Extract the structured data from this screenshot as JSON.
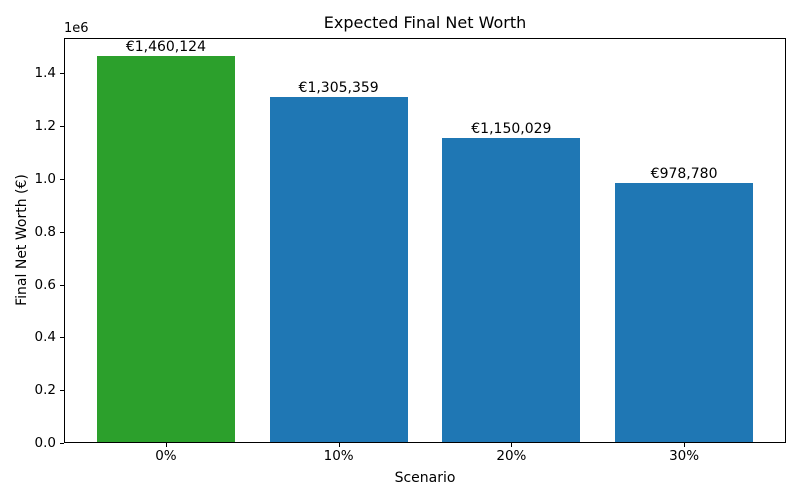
{
  "chart_data": {
    "type": "bar",
    "title": "Expected Final Net Worth",
    "xlabel": "Scenario",
    "ylabel": "Final Net Worth (€)",
    "y_offset_label": "1e6",
    "categories": [
      "0%",
      "10%",
      "20%",
      "30%"
    ],
    "values": [
      1460124,
      1305359,
      1150029,
      978780
    ],
    "bar_labels": [
      "€1,460,124",
      "€1,305,359",
      "€1,150,029",
      "€978,780"
    ],
    "bar_colors": [
      "#2ca02c",
      "#1f77b4",
      "#1f77b4",
      "#1f77b4"
    ],
    "ylim": [
      0,
      1533130
    ],
    "yticks": {
      "values": [
        0,
        200000,
        400000,
        600000,
        800000,
        1000000,
        1200000,
        1400000
      ],
      "labels": [
        "0.0",
        "0.2",
        "0.4",
        "0.6",
        "0.8",
        "1.0",
        "1.2",
        "1.4"
      ]
    },
    "grid": false,
    "legend": null,
    "bar_width_fraction": 0.8
  }
}
